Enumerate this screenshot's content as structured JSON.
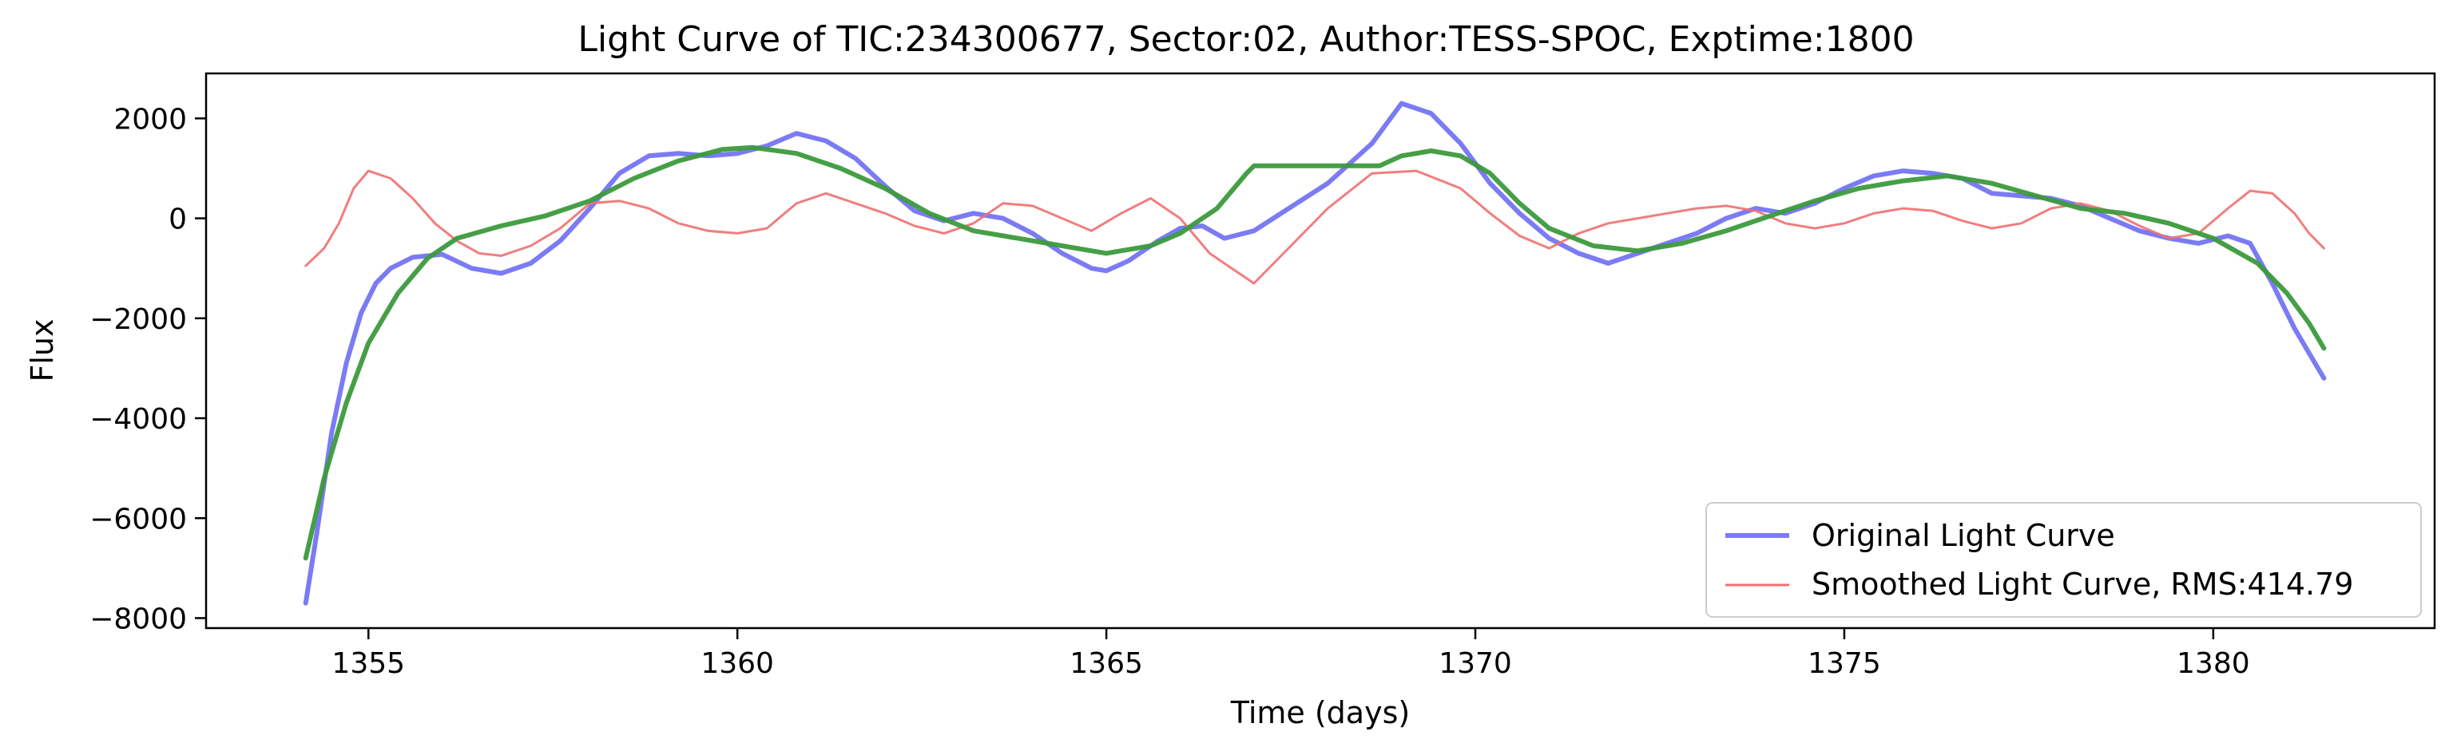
{
  "chart_data": {
    "type": "line",
    "title": "Light Curve of TIC:234300677, Sector:02, Author:TESS-SPOC, Exptime:1800",
    "xlabel": "Time (days)",
    "ylabel": "Flux",
    "xlim": [
      1352.8,
      1383.0
    ],
    "ylim": [
      -8200,
      2900
    ],
    "xticks": [
      1355,
      1360,
      1365,
      1370,
      1375,
      1380
    ],
    "yticks": [
      -8000,
      -6000,
      -4000,
      -2000,
      0,
      2000
    ],
    "grid": false,
    "legend_position": "lower-right",
    "series": [
      {
        "name": "Original Light Curve",
        "color": "#7b7bf5",
        "points": [
          [
            1354.15,
            -7700
          ],
          [
            1354.3,
            -6300
          ],
          [
            1354.5,
            -4300
          ],
          [
            1354.7,
            -2900
          ],
          [
            1354.9,
            -1900
          ],
          [
            1355.1,
            -1300
          ],
          [
            1355.3,
            -1000
          ],
          [
            1355.6,
            -780
          ],
          [
            1356.0,
            -720
          ],
          [
            1356.4,
            -1000
          ],
          [
            1356.8,
            -1100
          ],
          [
            1357.2,
            -900
          ],
          [
            1357.6,
            -450
          ],
          [
            1358.0,
            200
          ],
          [
            1358.4,
            900
          ],
          [
            1358.8,
            1250
          ],
          [
            1359.2,
            1300
          ],
          [
            1359.6,
            1250
          ],
          [
            1360.0,
            1300
          ],
          [
            1360.4,
            1450
          ],
          [
            1360.8,
            1700
          ],
          [
            1361.2,
            1550
          ],
          [
            1361.6,
            1200
          ],
          [
            1362.0,
            650
          ],
          [
            1362.4,
            150
          ],
          [
            1362.8,
            -50
          ],
          [
            1363.2,
            100
          ],
          [
            1363.6,
            0
          ],
          [
            1364.0,
            -300
          ],
          [
            1364.4,
            -700
          ],
          [
            1364.8,
            -1000
          ],
          [
            1365.0,
            -1050
          ],
          [
            1365.3,
            -850
          ],
          [
            1365.7,
            -450
          ],
          [
            1366.0,
            -200
          ],
          [
            1366.3,
            -150
          ],
          [
            1366.6,
            -400
          ],
          [
            1367.0,
            -250
          ],
          [
            1368.0,
            700
          ],
          [
            1368.6,
            1500
          ],
          [
            1369.0,
            2300
          ],
          [
            1369.4,
            2100
          ],
          [
            1369.8,
            1500
          ],
          [
            1370.2,
            700
          ],
          [
            1370.6,
            100
          ],
          [
            1371.0,
            -400
          ],
          [
            1371.4,
            -700
          ],
          [
            1371.8,
            -900
          ],
          [
            1372.2,
            -700
          ],
          [
            1372.6,
            -500
          ],
          [
            1373.0,
            -300
          ],
          [
            1373.4,
            0
          ],
          [
            1373.8,
            200
          ],
          [
            1374.2,
            100
          ],
          [
            1374.6,
            300
          ],
          [
            1375.0,
            600
          ],
          [
            1375.4,
            850
          ],
          [
            1375.8,
            950
          ],
          [
            1376.2,
            900
          ],
          [
            1376.6,
            800
          ],
          [
            1377.0,
            500
          ],
          [
            1377.4,
            450
          ],
          [
            1377.8,
            400
          ],
          [
            1378.2,
            250
          ],
          [
            1378.6,
            0
          ],
          [
            1379.0,
            -250
          ],
          [
            1379.4,
            -400
          ],
          [
            1379.8,
            -500
          ],
          [
            1380.2,
            -350
          ],
          [
            1380.5,
            -500
          ],
          [
            1380.8,
            -1300
          ],
          [
            1381.1,
            -2200
          ],
          [
            1381.3,
            -2700
          ],
          [
            1381.5,
            -3200
          ]
        ]
      },
      {
        "name": "Smoothed Light Curve, RMS:414.79",
        "color": "#f07070",
        "points": [
          [
            1354.15,
            -950
          ],
          [
            1354.4,
            -600
          ],
          [
            1354.6,
            -100
          ],
          [
            1354.8,
            600
          ],
          [
            1355.0,
            950
          ],
          [
            1355.3,
            800
          ],
          [
            1355.6,
            400
          ],
          [
            1355.9,
            -100
          ],
          [
            1356.2,
            -450
          ],
          [
            1356.5,
            -700
          ],
          [
            1356.8,
            -750
          ],
          [
            1357.2,
            -550
          ],
          [
            1357.6,
            -200
          ],
          [
            1358.0,
            300
          ],
          [
            1358.4,
            350
          ],
          [
            1358.8,
            200
          ],
          [
            1359.2,
            -100
          ],
          [
            1359.6,
            -250
          ],
          [
            1360.0,
            -300
          ],
          [
            1360.4,
            -200
          ],
          [
            1360.8,
            300
          ],
          [
            1361.2,
            500
          ],
          [
            1361.6,
            300
          ],
          [
            1362.0,
            100
          ],
          [
            1362.4,
            -150
          ],
          [
            1362.8,
            -300
          ],
          [
            1363.2,
            -100
          ],
          [
            1363.6,
            300
          ],
          [
            1364.0,
            250
          ],
          [
            1364.4,
            0
          ],
          [
            1364.8,
            -250
          ],
          [
            1365.2,
            100
          ],
          [
            1365.6,
            400
          ],
          [
            1366.0,
            0
          ],
          [
            1366.4,
            -700
          ],
          [
            1366.7,
            -1000
          ],
          [
            1367.0,
            -1300
          ],
          [
            1368.0,
            200
          ],
          [
            1368.6,
            900
          ],
          [
            1369.2,
            950
          ],
          [
            1369.8,
            600
          ],
          [
            1370.2,
            100
          ],
          [
            1370.6,
            -350
          ],
          [
            1371.0,
            -600
          ],
          [
            1371.4,
            -300
          ],
          [
            1371.8,
            -100
          ],
          [
            1372.2,
            0
          ],
          [
            1372.6,
            100
          ],
          [
            1373.0,
            200
          ],
          [
            1373.4,
            250
          ],
          [
            1373.8,
            150
          ],
          [
            1374.2,
            -100
          ],
          [
            1374.6,
            -200
          ],
          [
            1375.0,
            -100
          ],
          [
            1375.4,
            100
          ],
          [
            1375.8,
            200
          ],
          [
            1376.2,
            150
          ],
          [
            1376.6,
            -50
          ],
          [
            1377.0,
            -200
          ],
          [
            1377.4,
            -100
          ],
          [
            1377.8,
            200
          ],
          [
            1378.2,
            300
          ],
          [
            1378.6,
            150
          ],
          [
            1379.0,
            -150
          ],
          [
            1379.4,
            -400
          ],
          [
            1379.8,
            -300
          ],
          [
            1380.2,
            200
          ],
          [
            1380.5,
            550
          ],
          [
            1380.8,
            500
          ],
          [
            1381.1,
            100
          ],
          [
            1381.3,
            -300
          ],
          [
            1381.5,
            -600
          ]
        ]
      },
      {
        "color": "#3c9a3c",
        "points": [
          [
            1354.15,
            -6800
          ],
          [
            1354.4,
            -5200
          ],
          [
            1354.7,
            -3700
          ],
          [
            1355.0,
            -2500
          ],
          [
            1355.4,
            -1500
          ],
          [
            1355.8,
            -800
          ],
          [
            1356.2,
            -400
          ],
          [
            1356.8,
            -150
          ],
          [
            1357.4,
            50
          ],
          [
            1358.0,
            350
          ],
          [
            1358.6,
            800
          ],
          [
            1359.2,
            1150
          ],
          [
            1359.8,
            1380
          ],
          [
            1360.2,
            1420
          ],
          [
            1360.8,
            1300
          ],
          [
            1361.4,
            1000
          ],
          [
            1362.0,
            600
          ],
          [
            1362.6,
            100
          ],
          [
            1363.2,
            -250
          ],
          [
            1363.8,
            -400
          ],
          [
            1364.4,
            -550
          ],
          [
            1365.0,
            -700
          ],
          [
            1365.6,
            -550
          ],
          [
            1366.0,
            -300
          ],
          [
            1366.5,
            200
          ],
          [
            1366.9,
            900
          ],
          [
            1367.0,
            1050
          ],
          [
            1368.7,
            1050
          ],
          [
            1369.0,
            1250
          ],
          [
            1369.4,
            1350
          ],
          [
            1369.8,
            1250
          ],
          [
            1370.2,
            900
          ],
          [
            1370.6,
            300
          ],
          [
            1371.0,
            -200
          ],
          [
            1371.6,
            -550
          ],
          [
            1372.2,
            -650
          ],
          [
            1372.8,
            -500
          ],
          [
            1373.4,
            -250
          ],
          [
            1374.0,
            50
          ],
          [
            1374.6,
            350
          ],
          [
            1375.2,
            600
          ],
          [
            1375.8,
            750
          ],
          [
            1376.4,
            850
          ],
          [
            1377.0,
            700
          ],
          [
            1377.6,
            450
          ],
          [
            1378.2,
            200
          ],
          [
            1378.8,
            100
          ],
          [
            1379.4,
            -100
          ],
          [
            1380.0,
            -400
          ],
          [
            1380.6,
            -900
          ],
          [
            1381.0,
            -1500
          ],
          [
            1381.3,
            -2100
          ],
          [
            1381.5,
            -2600
          ]
        ]
      }
    ]
  }
}
